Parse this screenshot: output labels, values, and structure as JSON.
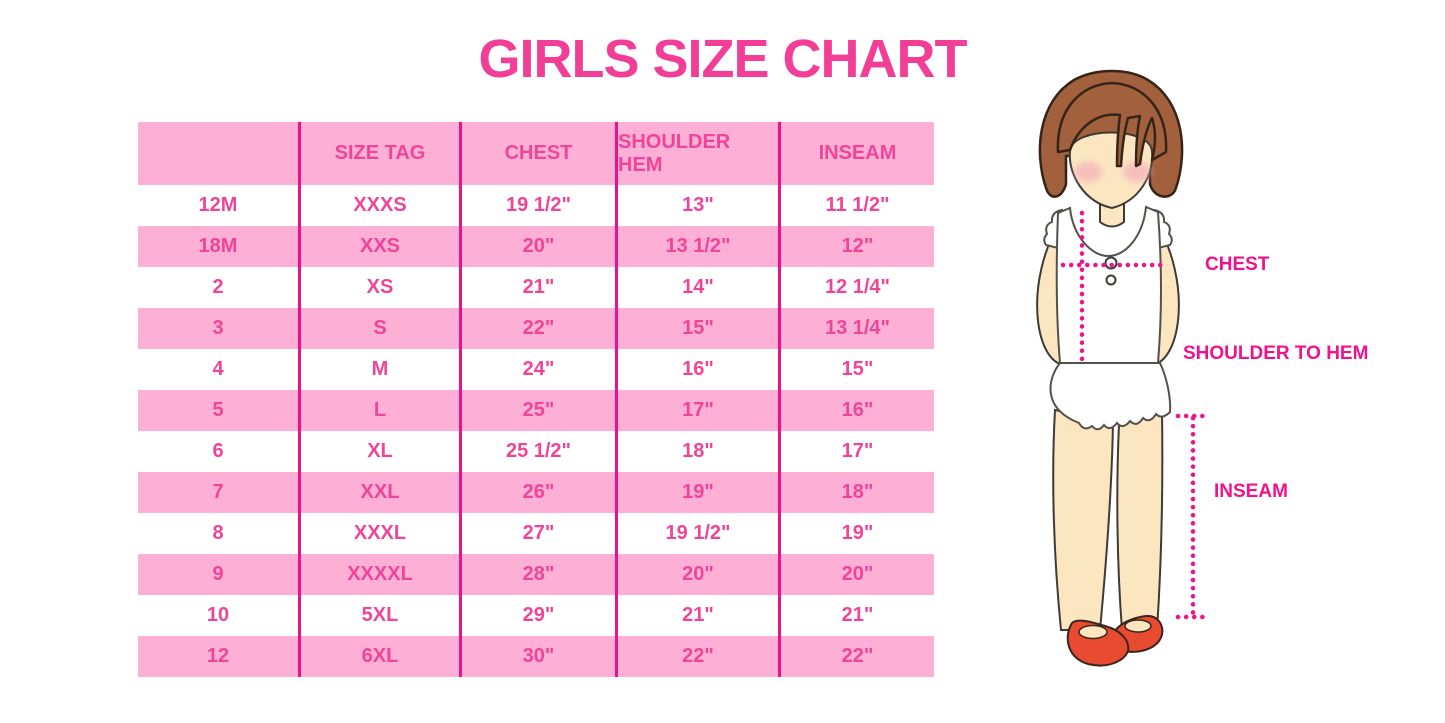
{
  "chart_data": {
    "type": "table",
    "title": "GIRLS SIZE CHART",
    "columns": [
      "",
      "SIZE TAG",
      "CHEST",
      "SHOULDER HEM",
      "INSEAM"
    ],
    "rows": [
      [
        "12M",
        "XXXS",
        "19 1/2\"",
        "13\"",
        "11 1/2\""
      ],
      [
        "18M",
        "XXS",
        "20\"",
        "13 1/2\"",
        "12\""
      ],
      [
        "2",
        "XS",
        "21\"",
        "14\"",
        "12 1/4\""
      ],
      [
        "3",
        "S",
        "22\"",
        "15\"",
        "13 1/4\""
      ],
      [
        "4",
        "M",
        "24\"",
        "16\"",
        "15\""
      ],
      [
        "5",
        "L",
        "25\"",
        "17\"",
        "16\""
      ],
      [
        "6",
        "XL",
        "25 1/2\"",
        "18\"",
        "17\""
      ],
      [
        "7",
        "XXL",
        "26\"",
        "19\"",
        "18\""
      ],
      [
        "8",
        "XXXL",
        "27\"",
        "19 1/2\"",
        "19\""
      ],
      [
        "9",
        "XXXXL",
        "28\"",
        "20\"",
        "20\""
      ],
      [
        "10",
        "5XL",
        "29\"",
        "21\"",
        "21\""
      ],
      [
        "12",
        "6XL",
        "30\"",
        "22\"",
        "22\""
      ]
    ],
    "layout_hints": {
      "striping": "rows alternate white and pink starting with white",
      "column_dividers": "magenta vertical lines between columns"
    }
  },
  "figure": {
    "labels": {
      "chest": "CHEST",
      "shoulder_to_hem": "SHOULDER TO HEM",
      "inseam": "INSEAM"
    }
  },
  "colors": {
    "title_pink": "#F23E96",
    "band_pink": "#FDAFD6",
    "divider_magenta": "#E9138C",
    "table_text_pink": "#EF4599",
    "label_magenta": "#F0128D",
    "hair_brown": "#A2603C",
    "skin": "#FBE6C0",
    "shoe_red": "#E84B2F"
  }
}
